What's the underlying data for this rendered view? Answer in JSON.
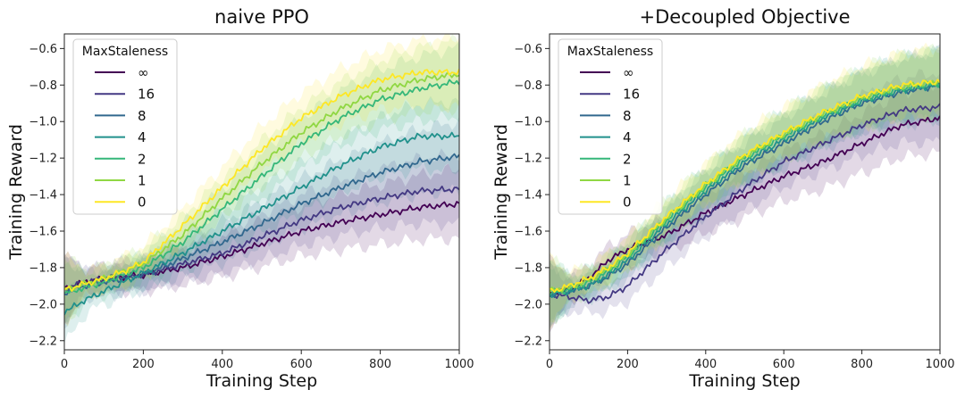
{
  "chart_data": [
    {
      "type": "line",
      "title": "naive PPO",
      "xlabel": "Training Step",
      "ylabel": "Training Reward",
      "xlim": [
        0,
        1000
      ],
      "ylim": [
        -2.25,
        -0.52
      ],
      "xticks": [
        0,
        200,
        400,
        600,
        800,
        1000
      ],
      "yticks": [
        -2.2,
        -2.0,
        -1.8,
        -1.6,
        -1.4,
        -1.2,
        -1.0,
        -0.8,
        -0.6
      ],
      "legend": {
        "title": "MaxStaleness",
        "placement": "top-left"
      },
      "series": [
        {
          "name": "∞",
          "color": "#440154",
          "x": [
            0,
            20,
            50,
            100,
            150,
            200,
            300,
            400,
            500,
            600,
            700,
            800,
            900,
            1000
          ],
          "y": [
            -1.92,
            -1.9,
            -1.88,
            -1.86,
            -1.85,
            -1.84,
            -1.8,
            -1.74,
            -1.67,
            -1.6,
            -1.55,
            -1.51,
            -1.47,
            -1.45
          ]
        },
        {
          "name": "16",
          "color": "#443983",
          "x": [
            0,
            20,
            50,
            100,
            150,
            200,
            300,
            400,
            500,
            600,
            700,
            800,
            900,
            1000
          ],
          "y": [
            -1.92,
            -1.9,
            -1.88,
            -1.86,
            -1.85,
            -1.84,
            -1.78,
            -1.72,
            -1.63,
            -1.54,
            -1.47,
            -1.42,
            -1.38,
            -1.37
          ]
        },
        {
          "name": "8",
          "color": "#31688e",
          "x": [
            0,
            20,
            50,
            100,
            150,
            200,
            300,
            400,
            500,
            600,
            700,
            800,
            900,
            1000
          ],
          "y": [
            -1.94,
            -1.92,
            -1.9,
            -1.88,
            -1.86,
            -1.84,
            -1.75,
            -1.66,
            -1.56,
            -1.45,
            -1.36,
            -1.28,
            -1.22,
            -1.19
          ]
        },
        {
          "name": "4",
          "color": "#21918c",
          "x": [
            0,
            20,
            50,
            100,
            150,
            200,
            300,
            400,
            500,
            600,
            700,
            800,
            900,
            1000
          ],
          "y": [
            -2.04,
            -2.02,
            -1.98,
            -1.93,
            -1.88,
            -1.83,
            -1.72,
            -1.6,
            -1.48,
            -1.36,
            -1.24,
            -1.14,
            -1.08,
            -1.08
          ]
        },
        {
          "name": "2",
          "color": "#35b779",
          "x": [
            0,
            20,
            50,
            100,
            150,
            200,
            300,
            400,
            500,
            600,
            700,
            800,
            900,
            1000
          ],
          "y": [
            -1.94,
            -1.93,
            -1.91,
            -1.88,
            -1.84,
            -1.8,
            -1.66,
            -1.48,
            -1.3,
            -1.12,
            -0.98,
            -0.88,
            -0.82,
            -0.78
          ]
        },
        {
          "name": "1",
          "color": "#90d743",
          "x": [
            0,
            20,
            50,
            100,
            150,
            200,
            300,
            400,
            500,
            600,
            700,
            800,
            900,
            1000
          ],
          "y": [
            -1.92,
            -1.91,
            -1.89,
            -1.86,
            -1.82,
            -1.78,
            -1.62,
            -1.42,
            -1.23,
            -1.06,
            -0.93,
            -0.83,
            -0.77,
            -0.74
          ]
        },
        {
          "name": "0",
          "color": "#fde725",
          "x": [
            0,
            20,
            50,
            100,
            150,
            200,
            300,
            400,
            500,
            600,
            700,
            800,
            900,
            1000
          ],
          "y": [
            -1.92,
            -1.91,
            -1.89,
            -1.86,
            -1.82,
            -1.77,
            -1.57,
            -1.36,
            -1.15,
            -0.98,
            -0.86,
            -0.77,
            -0.73,
            -0.73
          ]
        }
      ]
    },
    {
      "type": "line",
      "title": "+Decoupled Objective",
      "xlabel": "Training Step",
      "ylabel": "Training Reward",
      "xlim": [
        0,
        1000
      ],
      "ylim": [
        -2.25,
        -0.52
      ],
      "xticks": [
        0,
        200,
        400,
        600,
        800,
        1000
      ],
      "yticks": [
        -2.2,
        -2.0,
        -1.8,
        -1.6,
        -1.4,
        -1.2,
        -1.0,
        -0.8,
        -0.6
      ],
      "legend": {
        "title": "MaxStaleness",
        "placement": "top-left"
      },
      "series": [
        {
          "name": "∞",
          "color": "#440154",
          "x": [
            0,
            20,
            50,
            100,
            150,
            200,
            300,
            400,
            500,
            600,
            700,
            800,
            900,
            1000
          ],
          "y": [
            -1.94,
            -1.93,
            -1.92,
            -1.86,
            -1.76,
            -1.7,
            -1.62,
            -1.5,
            -1.4,
            -1.3,
            -1.22,
            -1.12,
            -1.02,
            -0.98
          ]
        },
        {
          "name": "16",
          "color": "#443983",
          "x": [
            0,
            20,
            50,
            100,
            150,
            200,
            300,
            400,
            500,
            600,
            700,
            800,
            900,
            1000
          ],
          "y": [
            -1.95,
            -1.95,
            -1.96,
            -1.98,
            -1.96,
            -1.9,
            -1.7,
            -1.52,
            -1.36,
            -1.22,
            -1.12,
            -1.02,
            -0.94,
            -0.92
          ]
        },
        {
          "name": "8",
          "color": "#31688e",
          "x": [
            0,
            20,
            50,
            100,
            150,
            200,
            300,
            400,
            500,
            600,
            700,
            800,
            900,
            1000
          ],
          "y": [
            -1.95,
            -1.94,
            -1.93,
            -1.9,
            -1.85,
            -1.78,
            -1.58,
            -1.4,
            -1.24,
            -1.12,
            -1.0,
            -0.9,
            -0.84,
            -0.8
          ]
        },
        {
          "name": "4",
          "color": "#21918c",
          "x": [
            0,
            20,
            50,
            100,
            150,
            200,
            300,
            400,
            500,
            600,
            700,
            800,
            900,
            1000
          ],
          "y": [
            -1.95,
            -1.94,
            -1.93,
            -1.9,
            -1.84,
            -1.76,
            -1.56,
            -1.38,
            -1.22,
            -1.1,
            -0.98,
            -0.89,
            -0.83,
            -0.8
          ]
        },
        {
          "name": "2",
          "color": "#35b779",
          "x": [
            0,
            20,
            50,
            100,
            150,
            200,
            300,
            400,
            500,
            600,
            700,
            800,
            900,
            1000
          ],
          "y": [
            -1.94,
            -1.93,
            -1.92,
            -1.88,
            -1.82,
            -1.74,
            -1.54,
            -1.36,
            -1.2,
            -1.08,
            -0.97,
            -0.88,
            -0.82,
            -0.79
          ]
        },
        {
          "name": "1",
          "color": "#90d743",
          "x": [
            0,
            20,
            50,
            100,
            150,
            200,
            300,
            400,
            500,
            600,
            700,
            800,
            900,
            1000
          ],
          "y": [
            -1.93,
            -1.92,
            -1.91,
            -1.87,
            -1.81,
            -1.73,
            -1.53,
            -1.35,
            -1.19,
            -1.07,
            -0.96,
            -0.87,
            -0.81,
            -0.78
          ]
        },
        {
          "name": "0",
          "color": "#fde725",
          "x": [
            0,
            20,
            50,
            100,
            150,
            200,
            300,
            400,
            500,
            600,
            700,
            800,
            900,
            1000
          ],
          "y": [
            -1.93,
            -1.92,
            -1.9,
            -1.86,
            -1.8,
            -1.72,
            -1.52,
            -1.34,
            -1.18,
            -1.06,
            -0.95,
            -0.86,
            -0.8,
            -0.78
          ]
        }
      ]
    }
  ]
}
